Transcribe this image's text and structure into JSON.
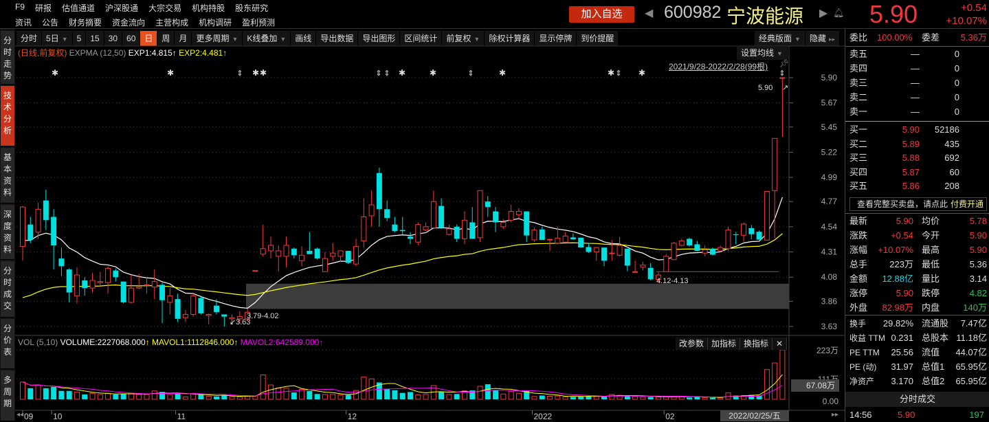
{
  "top_nav": {
    "row1": [
      "F9",
      "研报",
      "估值通道",
      "沪深股通",
      "大宗交易",
      "机构持股",
      "股东研究"
    ],
    "row2": [
      "资讯",
      "公告",
      "财务摘要",
      "资金流向",
      "主营构成",
      "机构调研",
      "盈利预测"
    ]
  },
  "stock": {
    "add_watch": "加入自选",
    "code": "600982",
    "name": "宁波能源",
    "price": "5.90",
    "change": "+0.54",
    "change_pct": "+10.07%"
  },
  "sidebar": [
    {
      "label": "分时走势"
    },
    {
      "label": "技术分析",
      "active": true
    },
    {
      "label": "基本资料"
    },
    {
      "label": "深度资料"
    },
    {
      "label": "分时成交"
    },
    {
      "label": "分价表"
    },
    {
      "label": "多周期"
    }
  ],
  "toolbar": {
    "items": [
      {
        "label": "分时"
      },
      {
        "label": "5日",
        "dropdown": true
      },
      {
        "label": "5"
      },
      {
        "label": "15"
      },
      {
        "label": "30"
      },
      {
        "label": "60"
      },
      {
        "label": "日",
        "active": true
      },
      {
        "label": "周"
      },
      {
        "label": "月"
      },
      {
        "label": "更多周期",
        "dropdown": true
      },
      {
        "label": "K线叠加",
        "dropdown": true
      },
      {
        "label": "画线"
      },
      {
        "label": "导出数据"
      },
      {
        "label": "导出图形"
      },
      {
        "label": "区间统计"
      },
      {
        "label": "前复权",
        "dropdown": true
      },
      {
        "label": "除权计算器"
      },
      {
        "label": "显示停牌"
      },
      {
        "label": "到价提醒"
      }
    ],
    "layout": "经典版面",
    "hide": "隐藏"
  },
  "indicator": {
    "mode": "(日线,前复权)",
    "name": "EXPMA (12,50)",
    "exp1": "EXP1:4.815",
    "exp2": "EXP2:4.481",
    "set_ma": "设置均线",
    "range": "2021/9/28-2022/2/28(99根)"
  },
  "volume_panel": {
    "name": "VOL (5,10)",
    "volume": "VOLUME:2227068.000",
    "mavol1": "MAVOL1:1112846.000",
    "mavol2": "MAVOL2:642589.000",
    "buttons": [
      "改参数",
      "加指标",
      "换指标"
    ],
    "close": "✕",
    "axis": [
      "223万",
      "111万",
      "0.00"
    ],
    "cursor_value": "67.08万"
  },
  "chart_data": {
    "type": "candlestick",
    "title": "",
    "colors": {
      "up": "#f0393e",
      "down": "#00e0e0",
      "exp1": "#ffffff",
      "exp2": "#ffff00",
      "mavol1": "#ffff00",
      "mavol2": "#ff00ff"
    },
    "y_ticks": [
      "5.90",
      "5.67",
      "5.45",
      "5.22",
      "4.99",
      "4.77",
      "4.54",
      "4.31",
      "4.08",
      "3.86",
      "3.63"
    ],
    "ylim": [
      3.63,
      5.9
    ],
    "x_labels": [
      {
        "label": "09",
        "bar": 0
      },
      {
        "label": "10",
        "bar": 4
      },
      {
        "label": "11",
        "bar": 20
      },
      {
        "label": "12",
        "bar": 42
      },
      {
        "label": "2022",
        "bar": 66
      },
      {
        "label": "02",
        "bar": 83
      }
    ],
    "cursor_date": "2022/02/25/五",
    "annotations": {
      "high": "5.90",
      "low": "3.63",
      "gap1": "3.79-4.02",
      "gap2": "4.12-4.13"
    },
    "gap_zone": [
      3.79,
      4.02
    ],
    "ohlc": [
      [
        4.36,
        4.73,
        4.23,
        4.72
      ],
      [
        4.56,
        4.63,
        4.39,
        4.42
      ],
      [
        4.49,
        4.76,
        4.43,
        4.7
      ],
      [
        4.78,
        4.88,
        4.51,
        4.6
      ],
      [
        4.63,
        4.7,
        4.15,
        4.37
      ],
      [
        4.25,
        4.35,
        4.09,
        4.18
      ],
      [
        4.15,
        4.16,
        3.85,
        3.94
      ],
      [
        3.91,
        4.17,
        3.84,
        4.1
      ],
      [
        4.05,
        4.08,
        3.91,
        3.98
      ],
      [
        3.98,
        4.12,
        3.94,
        4.05
      ],
      [
        4.03,
        4.13,
        3.99,
        4.04
      ],
      [
        4.03,
        4.18,
        3.93,
        4.16
      ],
      [
        4.14,
        4.16,
        4.04,
        4.08
      ],
      [
        4.04,
        4.04,
        3.84,
        3.85
      ],
      [
        3.85,
        4.1,
        3.84,
        3.98
      ],
      [
        3.98,
        4.11,
        3.97,
        3.99
      ],
      [
        4.01,
        4.08,
        3.93,
        4.01
      ],
      [
        3.99,
        4.15,
        3.88,
        4.04
      ],
      [
        4.01,
        4.03,
        3.66,
        3.87
      ],
      [
        3.85,
        3.98,
        3.74,
        3.91
      ],
      [
        3.88,
        3.93,
        3.67,
        3.7
      ],
      [
        3.71,
        3.78,
        3.67,
        3.74
      ],
      [
        3.74,
        3.94,
        3.72,
        3.91
      ],
      [
        3.89,
        3.91,
        3.74,
        3.75
      ],
      [
        3.73,
        3.75,
        3.65,
        3.74
      ],
      [
        3.82,
        3.88,
        3.74,
        3.76
      ],
      [
        3.74,
        3.74,
        3.63,
        3.72
      ],
      [
        3.7,
        3.74,
        3.65,
        3.71
      ],
      [
        3.7,
        3.77,
        3.66,
        3.72
      ],
      [
        3.7,
        3.79,
        3.68,
        3.76
      ],
      [
        4.14,
        4.14,
        4.14,
        4.14
      ],
      [
        4.29,
        4.56,
        4.27,
        4.34
      ],
      [
        4.32,
        4.45,
        4.25,
        4.37
      ],
      [
        4.27,
        4.37,
        4.13,
        4.32
      ],
      [
        4.27,
        4.45,
        4.17,
        4.37
      ],
      [
        4.34,
        4.35,
        4.25,
        4.28
      ],
      [
        4.23,
        4.36,
        4.18,
        4.28
      ],
      [
        4.32,
        4.49,
        4.29,
        4.29
      ],
      [
        4.34,
        4.35,
        4.24,
        4.25
      ],
      [
        4.13,
        4.31,
        4.13,
        4.25
      ],
      [
        4.27,
        4.39,
        4.23,
        4.3
      ],
      [
        4.27,
        4.32,
        4.22,
        4.32
      ],
      [
        4.32,
        4.32,
        4.2,
        4.21
      ],
      [
        4.2,
        4.43,
        4.18,
        4.36
      ],
      [
        4.41,
        4.8,
        4.35,
        4.63
      ],
      [
        4.64,
        4.87,
        4.54,
        4.74
      ],
      [
        5.03,
        5.08,
        4.54,
        4.7
      ],
      [
        4.7,
        4.78,
        4.59,
        4.62
      ],
      [
        4.56,
        4.63,
        4.49,
        4.5
      ],
      [
        4.51,
        4.63,
        4.47,
        4.5
      ],
      [
        4.45,
        4.49,
        4.38,
        4.43
      ],
      [
        4.4,
        4.58,
        4.37,
        4.56
      ],
      [
        4.51,
        4.58,
        4.5,
        4.54
      ],
      [
        4.53,
        4.87,
        4.52,
        4.77
      ],
      [
        4.73,
        4.8,
        4.52,
        4.53
      ],
      [
        4.47,
        4.56,
        4.46,
        4.52
      ],
      [
        4.54,
        4.56,
        4.4,
        4.43
      ],
      [
        4.43,
        4.68,
        4.38,
        4.6
      ],
      [
        4.58,
        4.72,
        4.43,
        4.43
      ],
      [
        4.44,
        4.87,
        4.4,
        4.87
      ],
      [
        4.77,
        4.82,
        4.63,
        4.72
      ],
      [
        4.68,
        4.72,
        4.49,
        4.58
      ],
      [
        4.54,
        4.61,
        4.52,
        4.58
      ],
      [
        4.6,
        4.74,
        4.58,
        4.68
      ],
      [
        4.65,
        4.71,
        4.61,
        4.68
      ],
      [
        4.68,
        4.68,
        4.4,
        4.46
      ],
      [
        4.42,
        4.53,
        4.4,
        4.51
      ],
      [
        4.515,
        4.54,
        4.42,
        4.42
      ],
      [
        4.42,
        4.43,
        4.32,
        4.425
      ],
      [
        4.39,
        4.54,
        4.38,
        4.435
      ],
      [
        4.4,
        4.49,
        4.4,
        4.455
      ],
      [
        4.443,
        4.48,
        4.42,
        4.425
      ],
      [
        4.44,
        4.44,
        4.35,
        4.35
      ],
      [
        4.355,
        4.39,
        4.3,
        4.31
      ],
      [
        4.31,
        4.35,
        4.23,
        4.35
      ],
      [
        4.35,
        4.35,
        4.18,
        4.23
      ],
      [
        4.3,
        4.42,
        4.23,
        4.3
      ],
      [
        4.28,
        4.446,
        4.27,
        4.37
      ],
      [
        4.34,
        4.34,
        4.135,
        4.185
      ],
      [
        4.13,
        4.23,
        4.13,
        4.13
      ],
      [
        4.17,
        4.22,
        4.14,
        4.19
      ],
      [
        4.165,
        4.21,
        4.05,
        4.06
      ],
      [
        4.06,
        4.125,
        4.03,
        4.1
      ],
      [
        4.13,
        4.29,
        4.13,
        4.27
      ],
      [
        4.24,
        4.4,
        4.24,
        4.39
      ],
      [
        4.37,
        4.43,
        4.36,
        4.41
      ],
      [
        4.43,
        4.44,
        4.36,
        4.37
      ],
      [
        4.38,
        4.41,
        4.32,
        4.32
      ],
      [
        4.3,
        4.37,
        4.27,
        4.33
      ],
      [
        4.34,
        4.35,
        4.28,
        4.285
      ],
      [
        4.32,
        4.37,
        4.31,
        4.35
      ],
      [
        4.34,
        4.54,
        4.32,
        4.51
      ],
      [
        4.47,
        4.49,
        4.38,
        4.465
      ],
      [
        4.462,
        4.578,
        4.404,
        4.565
      ],
      [
        4.527,
        4.556,
        4.425,
        4.472
      ],
      [
        4.494,
        4.506,
        4.422,
        4.422
      ],
      [
        4.418,
        4.862,
        4.418,
        4.862
      ],
      [
        4.87,
        5.346,
        4.435,
        5.346
      ],
      [
        5.9,
        5.9,
        5.36,
        5.9
      ]
    ],
    "volume_wan": [
      78,
      50,
      65,
      50,
      56,
      38,
      38,
      33,
      22,
      27,
      22,
      27,
      22,
      26,
      26,
      22,
      22,
      38,
      33,
      22,
      27,
      11,
      27,
      22,
      14,
      13,
      17,
      12,
      11,
      14,
      15,
      110,
      65,
      51,
      50,
      31,
      45,
      38,
      24,
      22,
      22,
      20,
      20,
      40,
      101,
      92,
      76,
      47,
      41,
      29,
      33,
      20,
      22,
      62,
      35,
      22,
      24,
      38,
      40,
      59,
      68,
      41,
      24,
      35,
      27,
      38,
      13,
      17,
      14,
      15,
      11,
      11,
      14,
      15,
      14,
      14,
      22,
      18,
      17,
      13,
      11,
      11,
      11,
      13,
      13,
      13,
      8,
      13,
      8,
      8,
      6,
      29,
      17,
      17,
      20,
      17,
      134,
      164,
      223
    ],
    "volume_ylim": [
      0,
      223
    ]
  },
  "right_panel": {
    "weibi": {
      "label": "委比",
      "value": "100.00%",
      "diff_label": "委差",
      "diff": "5.36万"
    },
    "asks": [
      {
        "label": "卖五",
        "price": "—",
        "vol": "0"
      },
      {
        "label": "卖四",
        "price": "—",
        "vol": "0"
      },
      {
        "label": "卖三",
        "price": "—",
        "vol": "0"
      },
      {
        "label": "卖二",
        "price": "—",
        "vol": "0"
      },
      {
        "label": "卖一",
        "price": "—",
        "vol": "0"
      }
    ],
    "bids": [
      {
        "label": "买一",
        "price": "5.90",
        "vol": "52186"
      },
      {
        "label": "买二",
        "price": "5.89",
        "vol": "435"
      },
      {
        "label": "买三",
        "price": "5.88",
        "vol": "692"
      },
      {
        "label": "买四",
        "price": "5.87",
        "vol": "60"
      },
      {
        "label": "买五",
        "price": "5.86",
        "vol": "208"
      }
    ],
    "promo": "查看完整买卖盘，请点此",
    "promo_link": "付费开通",
    "stats": [
      [
        {
          "l": "最新",
          "v": "5.90",
          "c": "red"
        },
        {
          "l": "均价",
          "v": "5.78",
          "c": "red"
        }
      ],
      [
        {
          "l": "涨跌",
          "v": "+0.54",
          "c": "red"
        },
        {
          "l": "今开",
          "v": "5.90",
          "c": "red"
        }
      ],
      [
        {
          "l": "涨幅",
          "v": "+10.07%",
          "c": "red"
        },
        {
          "l": "最高",
          "v": "5.90",
          "c": "red"
        }
      ],
      [
        {
          "l": "总手",
          "v": "223万",
          "c": "wht"
        },
        {
          "l": "最低",
          "v": "5.36",
          "c": "wht"
        }
      ],
      [
        {
          "l": "金额",
          "v": "12.88亿",
          "c": "cyn"
        },
        {
          "l": "量比",
          "v": "3.14",
          "c": "wht"
        }
      ],
      [
        {
          "l": "涨停",
          "v": "5.90",
          "c": "red"
        },
        {
          "l": "跌停",
          "v": "4.82",
          "c": "grn"
        }
      ],
      [
        {
          "l": "外盘",
          "v": "82.98万",
          "c": "red"
        },
        {
          "l": "内盘",
          "v": "140万",
          "c": "grn"
        }
      ]
    ],
    "stats2": [
      [
        {
          "l": "换手",
          "v": "29.82%"
        },
        {
          "l": "流通股",
          "v": "7.47亿"
        }
      ],
      [
        {
          "l": "收益 TTM",
          "v": "0.231"
        },
        {
          "l": "总股本",
          "v": "11.18亿"
        }
      ],
      [
        {
          "l": "PE TTM",
          "v": "25.56"
        },
        {
          "l": "流值",
          "v": "44.07亿"
        }
      ],
      [
        {
          "l": "PE (动)",
          "v": "31.97"
        },
        {
          "l": "总值1",
          "v": "65.95亿"
        }
      ],
      [
        {
          "l": "净资产",
          "v": "3.170"
        },
        {
          "l": "总值2",
          "v": "65.95亿"
        }
      ]
    ],
    "ticks_title": "分时成交",
    "ticks": [
      {
        "time": "14:56",
        "price": "5.90",
        "vol": "197"
      }
    ]
  }
}
